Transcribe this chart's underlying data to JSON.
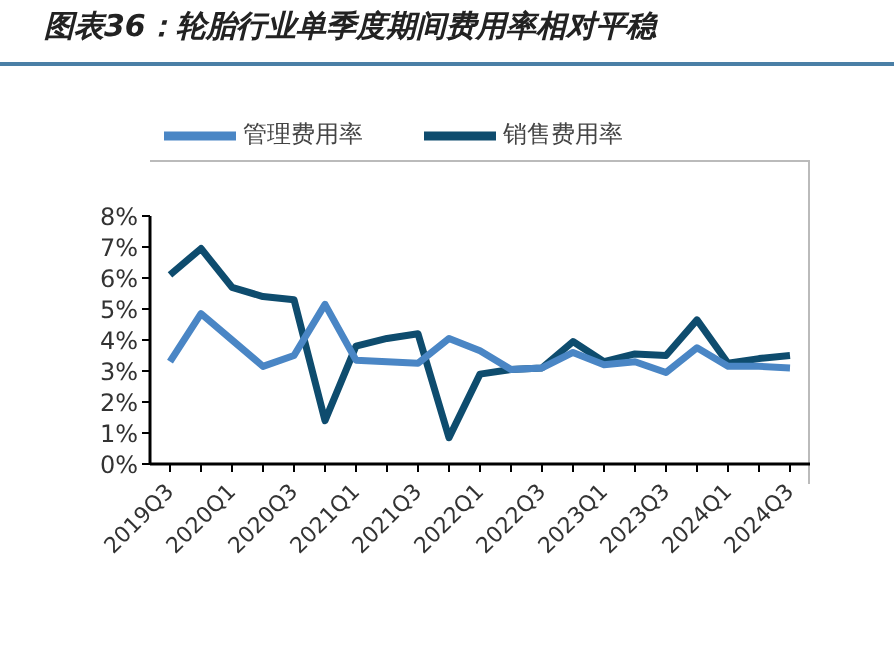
{
  "chart_data": {
    "type": "line",
    "title": "图表36：轮胎行业单季度期间费用率相对平稳",
    "categories": [
      "2019Q3",
      null,
      "2020Q1",
      null,
      "2020Q3",
      null,
      "2021Q1",
      null,
      "2021Q3",
      null,
      "2022Q1",
      null,
      "2022Q3",
      null,
      "2023Q1",
      null,
      "2023Q3",
      null,
      "2024Q1",
      null,
      "2024Q3"
    ],
    "series": [
      {
        "name": "销售费用率",
        "color": "#0e4c6e",
        "values": [
          6.1,
          6.95,
          5.7,
          5.4,
          5.3,
          1.4,
          3.8,
          4.05,
          4.2,
          0.85,
          2.9,
          3.05,
          3.1,
          3.95,
          3.3,
          3.55,
          3.5,
          4.65,
          3.25,
          3.4,
          3.5
        ]
      },
      {
        "name": "管理费用率",
        "color": "#4a86c5",
        "values": [
          3.3,
          4.85,
          4.0,
          3.15,
          3.5,
          5.15,
          3.35,
          3.3,
          3.25,
          4.05,
          3.65,
          3.05,
          3.1,
          3.6,
          3.2,
          3.3,
          2.95,
          3.75,
          3.15,
          3.15,
          3.1
        ]
      }
    ],
    "ylim": [
      0,
      8
    ],
    "yticks": [
      {
        "value": 0,
        "label": "0%"
      },
      {
        "value": 1,
        "label": "1%"
      },
      {
        "value": 2,
        "label": "2%"
      },
      {
        "value": 3,
        "label": "3%"
      },
      {
        "value": 4,
        "label": "4%"
      },
      {
        "value": 5,
        "label": "5%"
      },
      {
        "value": 6,
        "label": "6%"
      },
      {
        "value": 7,
        "label": "7%"
      },
      {
        "value": 8,
        "label": "8%"
      }
    ],
    "legend": "top",
    "grid": false,
    "marker": "none",
    "line_style": "solid"
  }
}
